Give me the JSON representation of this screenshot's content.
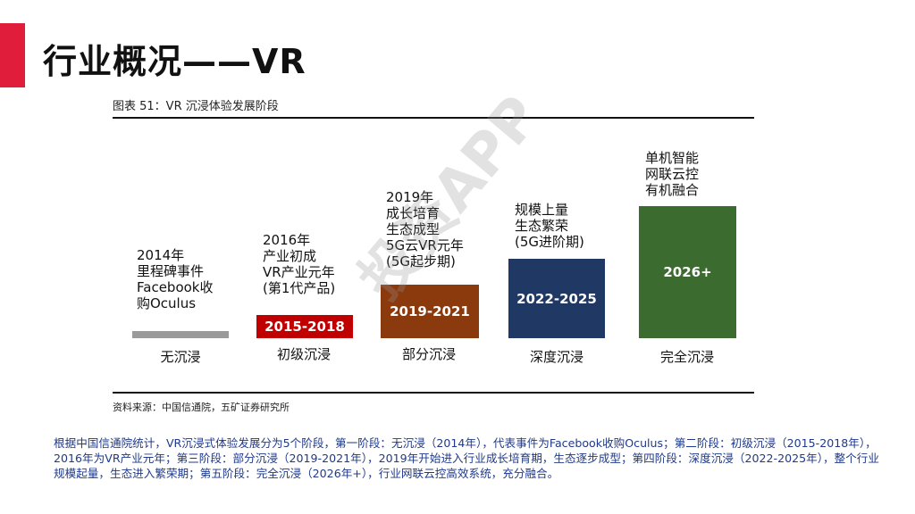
{
  "page": {
    "title": "行业概况——VR",
    "accent_color": "#e01e3c"
  },
  "figure": {
    "caption": "图表 51：VR 沉浸体验发展阶段",
    "source": "资料来源：中国信通院，五矿证券研究所",
    "watermark": "投资APP"
  },
  "stages": [
    {
      "desc_lines": [
        "2014年",
        "里程碑事件",
        "Facebook收",
        "购Oculus"
      ],
      "box_text": "",
      "box_color": "#9a9a9a",
      "label": "无沉浸"
    },
    {
      "desc_lines": [
        "2016年",
        "产业初成",
        "VR产业元年",
        "(第1代产品)"
      ],
      "box_text": "2015-2018",
      "box_color": "#c00000",
      "label": "初级沉浸"
    },
    {
      "desc_lines": [
        "2019年",
        "成长培育",
        "生态成型",
        "5G云VR元年",
        "(5G起步期)"
      ],
      "box_text": "2019-2021",
      "box_color": "#8b3a0e",
      "label": "部分沉浸"
    },
    {
      "desc_lines": [
        "规模上量",
        "生态繁荣",
        "(5G进阶期)"
      ],
      "box_text": "2022-2025",
      "box_color": "#1f3864",
      "label": "深度沉浸"
    },
    {
      "desc_lines": [
        "单机智能",
        "网联云控",
        "有机融合"
      ],
      "box_text": "2026+",
      "box_color": "#3b6b2e",
      "label": "完全沉浸"
    }
  ],
  "summary": "根据中国信通院统计，VR沉浸式体验发展分为5个阶段，第一阶段：无沉浸（2014年），代表事件为Facebook收购Oculus；第二阶段：初级沉浸（2015-2018年），2016年为VR产业元年；第三阶段：部分沉浸（2019-2021年），2019年开始进入行业成长培育期，生态逐步成型；第四阶段：深度沉浸（2022-2025年），整个行业规模起量，生态进入繁荣期；第五阶段：完全沉浸（2026年+），行业网联云控高效系统，充分融合。"
}
